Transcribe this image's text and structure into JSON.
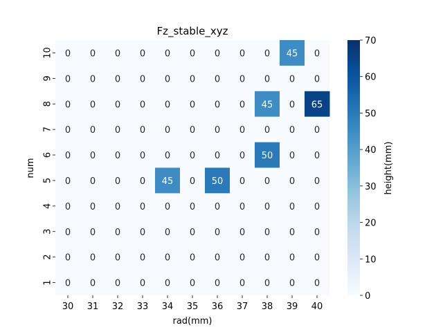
{
  "chart_data": {
    "type": "heatmap",
    "title": "Fz_stable_xyz",
    "xlabel": "rad(mm)",
    "ylabel": "num",
    "colorbar_label": "height(mm)",
    "x_categories": [
      "30",
      "31",
      "32",
      "33",
      "34",
      "35",
      "36",
      "37",
      "38",
      "39",
      "40"
    ],
    "y_categories": [
      "10",
      "9",
      "8",
      "7",
      "6",
      "5",
      "4",
      "3",
      "2",
      "1"
    ],
    "values": [
      [
        0,
        0,
        0,
        0,
        0,
        0,
        0,
        0,
        0,
        45,
        0
      ],
      [
        0,
        0,
        0,
        0,
        0,
        0,
        0,
        0,
        0,
        0,
        0
      ],
      [
        0,
        0,
        0,
        0,
        0,
        0,
        0,
        0,
        45,
        0,
        65
      ],
      [
        0,
        0,
        0,
        0,
        0,
        0,
        0,
        0,
        0,
        0,
        0
      ],
      [
        0,
        0,
        0,
        0,
        0,
        0,
        0,
        0,
        50,
        0,
        0
      ],
      [
        0,
        0,
        0,
        0,
        45,
        0,
        50,
        0,
        0,
        0,
        0
      ],
      [
        0,
        0,
        0,
        0,
        0,
        0,
        0,
        0,
        0,
        0,
        0
      ],
      [
        0,
        0,
        0,
        0,
        0,
        0,
        0,
        0,
        0,
        0,
        0
      ],
      [
        0,
        0,
        0,
        0,
        0,
        0,
        0,
        0,
        0,
        0,
        0
      ],
      [
        0,
        0,
        0,
        0,
        0,
        0,
        0,
        0,
        0,
        0,
        0
      ]
    ],
    "vmin": 0,
    "vmax": 70,
    "colorbar_ticks": [
      0,
      10,
      20,
      30,
      40,
      50,
      60,
      70
    ],
    "colormap": "Blues",
    "colormap_stops": [
      "#f7fbff",
      "#deebf7",
      "#c6dbef",
      "#9ecae1",
      "#6baed6",
      "#4292c6",
      "#2171b5",
      "#08519c",
      "#08306b"
    ]
  }
}
